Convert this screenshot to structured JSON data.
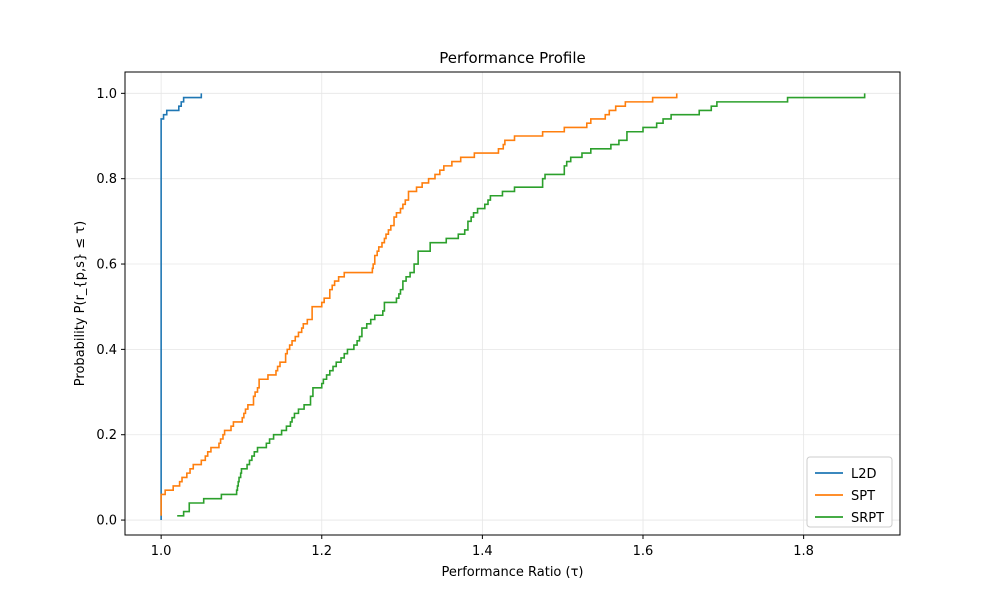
{
  "chart_data": {
    "type": "line",
    "title": "Performance Profile",
    "xlabel": "Performance Ratio (τ)",
    "ylabel": "Probability P(r_{p,s} ≤ τ)",
    "xlim": [
      0.955,
      1.92
    ],
    "ylim": [
      -0.035,
      1.05
    ],
    "xticks": [
      1.0,
      1.2,
      1.4,
      1.6,
      1.8
    ],
    "xtick_labels": [
      "1.0",
      "1.2",
      "1.4",
      "1.6",
      "1.8"
    ],
    "yticks": [
      0.0,
      0.2,
      0.4,
      0.6,
      0.8,
      1.0
    ],
    "ytick_labels": [
      "0.0",
      "0.2",
      "0.4",
      "0.6",
      "0.8",
      "1.0"
    ],
    "grid": true,
    "legend_position": "bottom-right",
    "step": "post",
    "series": [
      {
        "name": "L2D",
        "color": "#1f77b4",
        "points": [
          [
            1.0,
            0.0
          ],
          [
            1.0,
            0.94
          ],
          [
            1.003,
            0.95
          ],
          [
            1.007,
            0.96
          ],
          [
            1.022,
            0.97
          ],
          [
            1.025,
            0.98
          ],
          [
            1.028,
            0.99
          ],
          [
            1.05,
            1.0
          ]
        ]
      },
      {
        "name": "SPT",
        "color": "#ff7f0e",
        "points": [
          [
            1.0,
            0.01
          ],
          [
            1.0,
            0.06
          ],
          [
            1.005,
            0.07
          ],
          [
            1.015,
            0.08
          ],
          [
            1.023,
            0.09
          ],
          [
            1.026,
            0.1
          ],
          [
            1.032,
            0.11
          ],
          [
            1.036,
            0.12
          ],
          [
            1.04,
            0.13
          ],
          [
            1.05,
            0.14
          ],
          [
            1.055,
            0.15
          ],
          [
            1.058,
            0.16
          ],
          [
            1.062,
            0.17
          ],
          [
            1.072,
            0.18
          ],
          [
            1.074,
            0.19
          ],
          [
            1.077,
            0.2
          ],
          [
            1.079,
            0.21
          ],
          [
            1.087,
            0.22
          ],
          [
            1.09,
            0.23
          ],
          [
            1.101,
            0.24
          ],
          [
            1.103,
            0.25
          ],
          [
            1.105,
            0.26
          ],
          [
            1.108,
            0.27
          ],
          [
            1.115,
            0.29
          ],
          [
            1.117,
            0.3
          ],
          [
            1.12,
            0.31
          ],
          [
            1.122,
            0.33
          ],
          [
            1.133,
            0.34
          ],
          [
            1.143,
            0.35
          ],
          [
            1.145,
            0.36
          ],
          [
            1.148,
            0.37
          ],
          [
            1.155,
            0.39
          ],
          [
            1.157,
            0.4
          ],
          [
            1.16,
            0.41
          ],
          [
            1.163,
            0.42
          ],
          [
            1.167,
            0.43
          ],
          [
            1.171,
            0.44
          ],
          [
            1.175,
            0.45
          ],
          [
            1.177,
            0.46
          ],
          [
            1.182,
            0.47
          ],
          [
            1.188,
            0.5
          ],
          [
            1.2,
            0.51
          ],
          [
            1.203,
            0.52
          ],
          [
            1.21,
            0.54
          ],
          [
            1.213,
            0.55
          ],
          [
            1.216,
            0.56
          ],
          [
            1.221,
            0.57
          ],
          [
            1.228,
            0.58
          ],
          [
            1.263,
            0.59
          ],
          [
            1.264,
            0.6
          ],
          [
            1.266,
            0.62
          ],
          [
            1.269,
            0.63
          ],
          [
            1.271,
            0.64
          ],
          [
            1.275,
            0.65
          ],
          [
            1.278,
            0.66
          ],
          [
            1.28,
            0.67
          ],
          [
            1.283,
            0.68
          ],
          [
            1.286,
            0.69
          ],
          [
            1.29,
            0.71
          ],
          [
            1.293,
            0.72
          ],
          [
            1.298,
            0.73
          ],
          [
            1.301,
            0.74
          ],
          [
            1.304,
            0.75
          ],
          [
            1.308,
            0.77
          ],
          [
            1.318,
            0.78
          ],
          [
            1.325,
            0.79
          ],
          [
            1.333,
            0.8
          ],
          [
            1.341,
            0.81
          ],
          [
            1.347,
            0.82
          ],
          [
            1.352,
            0.83
          ],
          [
            1.362,
            0.84
          ],
          [
            1.373,
            0.85
          ],
          [
            1.39,
            0.86
          ],
          [
            1.42,
            0.87
          ],
          [
            1.426,
            0.88
          ],
          [
            1.428,
            0.89
          ],
          [
            1.44,
            0.9
          ],
          [
            1.475,
            0.91
          ],
          [
            1.502,
            0.92
          ],
          [
            1.53,
            0.93
          ],
          [
            1.535,
            0.94
          ],
          [
            1.553,
            0.95
          ],
          [
            1.558,
            0.96
          ],
          [
            1.566,
            0.97
          ],
          [
            1.578,
            0.98
          ],
          [
            1.612,
            0.99
          ],
          [
            1.642,
            1.0
          ]
        ]
      },
      {
        "name": "SRPT",
        "color": "#2ca02c",
        "points": [
          [
            1.02,
            0.01
          ],
          [
            1.028,
            0.02
          ],
          [
            1.035,
            0.04
          ],
          [
            1.053,
            0.05
          ],
          [
            1.075,
            0.06
          ],
          [
            1.094,
            0.07
          ],
          [
            1.095,
            0.08
          ],
          [
            1.096,
            0.09
          ],
          [
            1.097,
            0.1
          ],
          [
            1.099,
            0.11
          ],
          [
            1.1,
            0.12
          ],
          [
            1.107,
            0.13
          ],
          [
            1.11,
            0.14
          ],
          [
            1.113,
            0.15
          ],
          [
            1.116,
            0.16
          ],
          [
            1.12,
            0.17
          ],
          [
            1.131,
            0.18
          ],
          [
            1.135,
            0.19
          ],
          [
            1.14,
            0.2
          ],
          [
            1.15,
            0.21
          ],
          [
            1.156,
            0.22
          ],
          [
            1.161,
            0.23
          ],
          [
            1.163,
            0.24
          ],
          [
            1.166,
            0.25
          ],
          [
            1.171,
            0.26
          ],
          [
            1.178,
            0.27
          ],
          [
            1.186,
            0.29
          ],
          [
            1.189,
            0.31
          ],
          [
            1.2,
            0.32
          ],
          [
            1.202,
            0.33
          ],
          [
            1.206,
            0.34
          ],
          [
            1.21,
            0.35
          ],
          [
            1.214,
            0.36
          ],
          [
            1.218,
            0.37
          ],
          [
            1.224,
            0.38
          ],
          [
            1.228,
            0.39
          ],
          [
            1.232,
            0.4
          ],
          [
            1.24,
            0.41
          ],
          [
            1.244,
            0.42
          ],
          [
            1.247,
            0.43
          ],
          [
            1.25,
            0.45
          ],
          [
            1.256,
            0.46
          ],
          [
            1.261,
            0.47
          ],
          [
            1.266,
            0.48
          ],
          [
            1.276,
            0.49
          ],
          [
            1.278,
            0.51
          ],
          [
            1.293,
            0.52
          ],
          [
            1.296,
            0.53
          ],
          [
            1.298,
            0.54
          ],
          [
            1.301,
            0.56
          ],
          [
            1.305,
            0.57
          ],
          [
            1.31,
            0.58
          ],
          [
            1.315,
            0.6
          ],
          [
            1.32,
            0.63
          ],
          [
            1.335,
            0.65
          ],
          [
            1.355,
            0.66
          ],
          [
            1.37,
            0.67
          ],
          [
            1.378,
            0.68
          ],
          [
            1.382,
            0.7
          ],
          [
            1.386,
            0.71
          ],
          [
            1.389,
            0.72
          ],
          [
            1.394,
            0.73
          ],
          [
            1.403,
            0.74
          ],
          [
            1.407,
            0.75
          ],
          [
            1.41,
            0.76
          ],
          [
            1.425,
            0.77
          ],
          [
            1.44,
            0.78
          ],
          [
            1.475,
            0.8
          ],
          [
            1.478,
            0.81
          ],
          [
            1.502,
            0.83
          ],
          [
            1.505,
            0.84
          ],
          [
            1.51,
            0.85
          ],
          [
            1.524,
            0.86
          ],
          [
            1.535,
            0.87
          ],
          [
            1.56,
            0.88
          ],
          [
            1.57,
            0.89
          ],
          [
            1.58,
            0.91
          ],
          [
            1.6,
            0.92
          ],
          [
            1.617,
            0.93
          ],
          [
            1.625,
            0.94
          ],
          [
            1.635,
            0.95
          ],
          [
            1.67,
            0.96
          ],
          [
            1.685,
            0.97
          ],
          [
            1.692,
            0.98
          ],
          [
            1.78,
            0.99
          ],
          [
            1.876,
            1.0
          ]
        ]
      }
    ]
  }
}
